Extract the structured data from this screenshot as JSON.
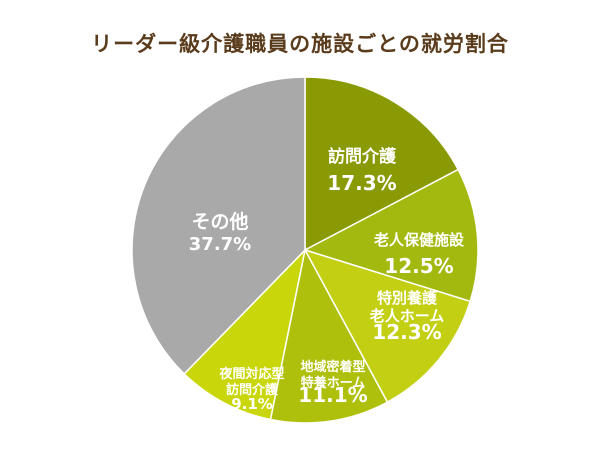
{
  "chart_data": {
    "type": "pie",
    "title": "リーダー級介護職員の施設ごとの就労割合",
    "slices": [
      {
        "label": [
          "訪問介護"
        ],
        "value": 17.3,
        "value_label": "17.3%",
        "color": "#8a9a05"
      },
      {
        "label": [
          "老人保健施設"
        ],
        "value": 12.5,
        "value_label": "12.5%",
        "color": "#a4b90f"
      },
      {
        "label": [
          "特別養護",
          "老人ホーム"
        ],
        "value": 12.3,
        "value_label": "12.3%",
        "color": "#c2cf12"
      },
      {
        "label": [
          "地域密着型",
          "特養ホーム"
        ],
        "value": 11.1,
        "value_label": "11.1%",
        "color": "#aec00c"
      },
      {
        "label": [
          "夜間対応型",
          "訪問介護"
        ],
        "value": 9.1,
        "value_label": "9.1%",
        "color": "#c9d70a"
      },
      {
        "label": [
          "その他"
        ],
        "value": 37.7,
        "value_label": "37.7%",
        "color": "#a9a9a9"
      }
    ]
  }
}
